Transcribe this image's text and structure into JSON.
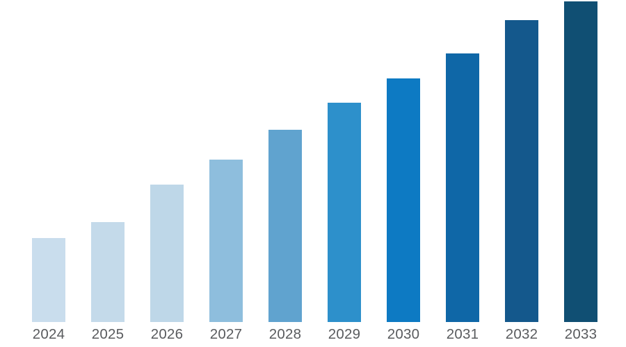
{
  "chart_data": {
    "type": "bar",
    "title": "",
    "xlabel": "",
    "ylabel": "",
    "categories": [
      "2024",
      "2025",
      "2026",
      "2027",
      "2028",
      "2029",
      "2030",
      "2031",
      "2032",
      "2033"
    ],
    "values": [
      121,
      144,
      198,
      234,
      277,
      316,
      351,
      387,
      435,
      462
    ],
    "value_scale": "relative (no y-axis or data labels shown in image)",
    "colors": [
      "#c9dded",
      "#c4daea",
      "#bed7e8",
      "#8ebedd",
      "#60a3cf",
      "#2d90cb",
      "#0d7ac3",
      "#0f67a7",
      "#14588c",
      "#104f73"
    ],
    "grid": false,
    "legend": false,
    "axes_lines_visible": false,
    "tick_label_color": "#595b5e",
    "background_color": "#ffffff"
  }
}
